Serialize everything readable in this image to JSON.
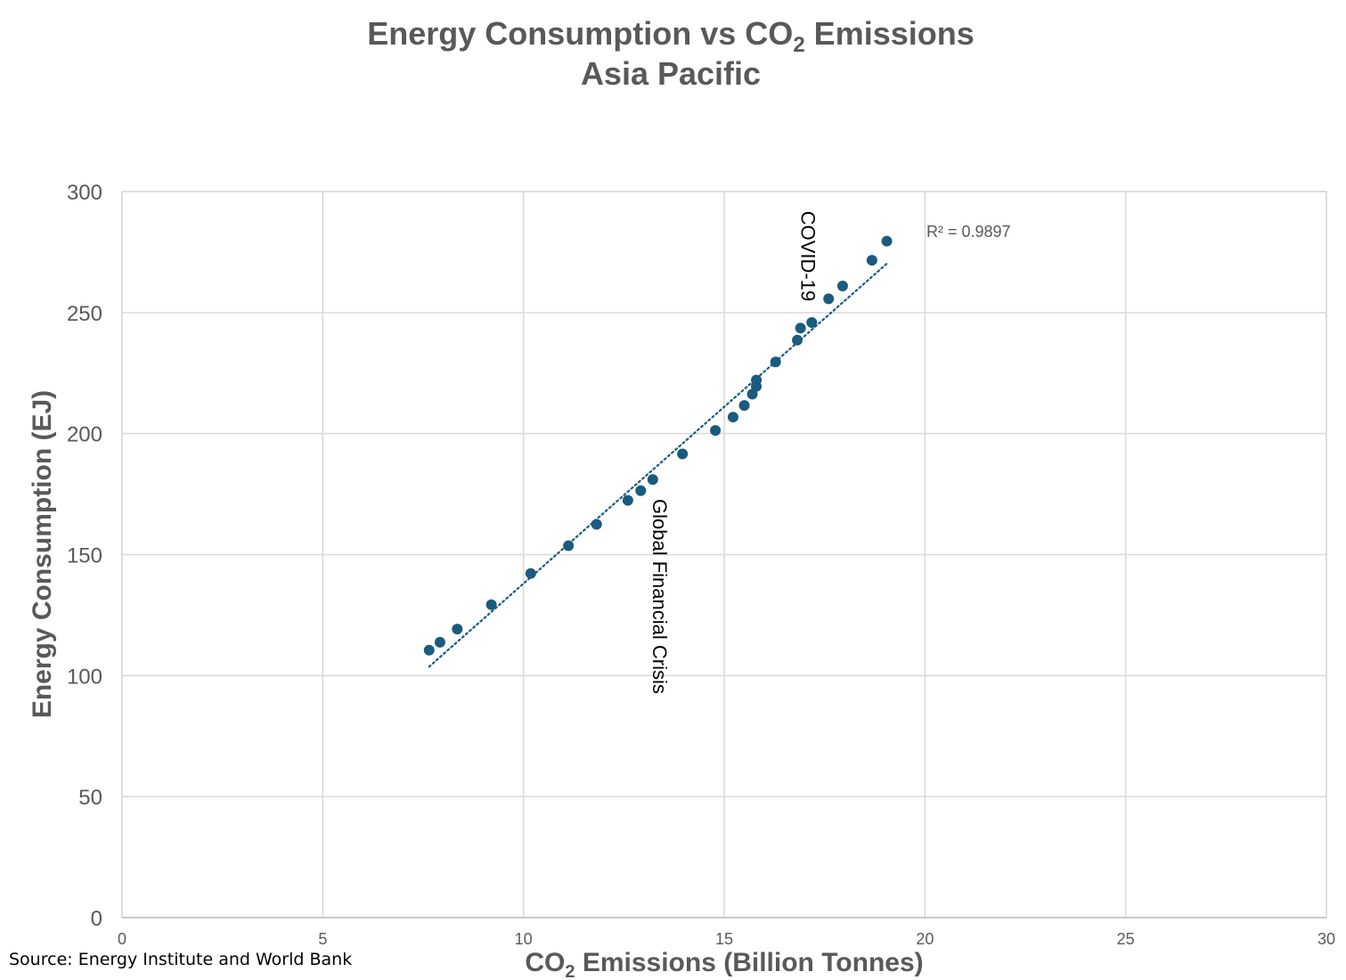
{
  "chart_data": {
    "type": "scatter",
    "title_line1_main": "Energy Consumption vs CO",
    "title_line1_sub": "2",
    "title_line1_end": " Emissions",
    "title_line2": "Asia Pacific",
    "xlabel_main": "CO",
    "xlabel_sub": "2",
    "xlabel_end": " Emissions (Billion Tonnes)",
    "ylabel": "Energy Consumption (EJ)",
    "xlim": [
      0,
      30
    ],
    "ylim": [
      0,
      300
    ],
    "x_ticks": [
      0,
      5,
      10,
      15,
      20,
      25,
      30
    ],
    "y_ticks": [
      0,
      50,
      100,
      150,
      200,
      250,
      300
    ],
    "grid": true,
    "series": [
      {
        "name": "Asia Pacific",
        "color": "#1a5b7e",
        "points": [
          [
            7.65,
            110.5
          ],
          [
            7.92,
            113.8
          ],
          [
            8.35,
            119.2
          ],
          [
            9.2,
            129.3
          ],
          [
            10.18,
            142.2
          ],
          [
            11.12,
            153.7
          ],
          [
            11.82,
            162.5
          ],
          [
            12.6,
            172.4
          ],
          [
            12.92,
            176.4
          ],
          [
            13.22,
            181.0
          ],
          [
            13.96,
            191.6
          ],
          [
            14.78,
            201.3
          ],
          [
            15.22,
            206.8
          ],
          [
            15.5,
            211.6
          ],
          [
            15.7,
            216.3
          ],
          [
            15.8,
            219.5
          ],
          [
            15.8,
            222.1
          ],
          [
            16.28,
            229.6
          ],
          [
            16.82,
            238.6
          ],
          [
            16.9,
            243.6
          ],
          [
            17.18,
            245.9
          ],
          [
            17.6,
            255.7
          ],
          [
            17.95,
            261.0
          ],
          [
            18.68,
            271.6
          ],
          [
            19.05,
            279.5
          ]
        ]
      }
    ],
    "trendline": {
      "style": "dotted",
      "color": "#1a5b7e",
      "x": [
        7.65,
        19.05
      ],
      "y": [
        103.7,
        270.2
      ],
      "r_squared_label": "R² = 0.9897"
    },
    "annotations": [
      {
        "text": "COVID-19",
        "x": 16.92,
        "y": 292,
        "rotation": 90
      },
      {
        "text": "Global Financial Crisis",
        "x": 13.22,
        "y": 173,
        "rotation": 90
      }
    ]
  },
  "footer": {
    "source": "Source: Energy Institute and World Bank"
  }
}
